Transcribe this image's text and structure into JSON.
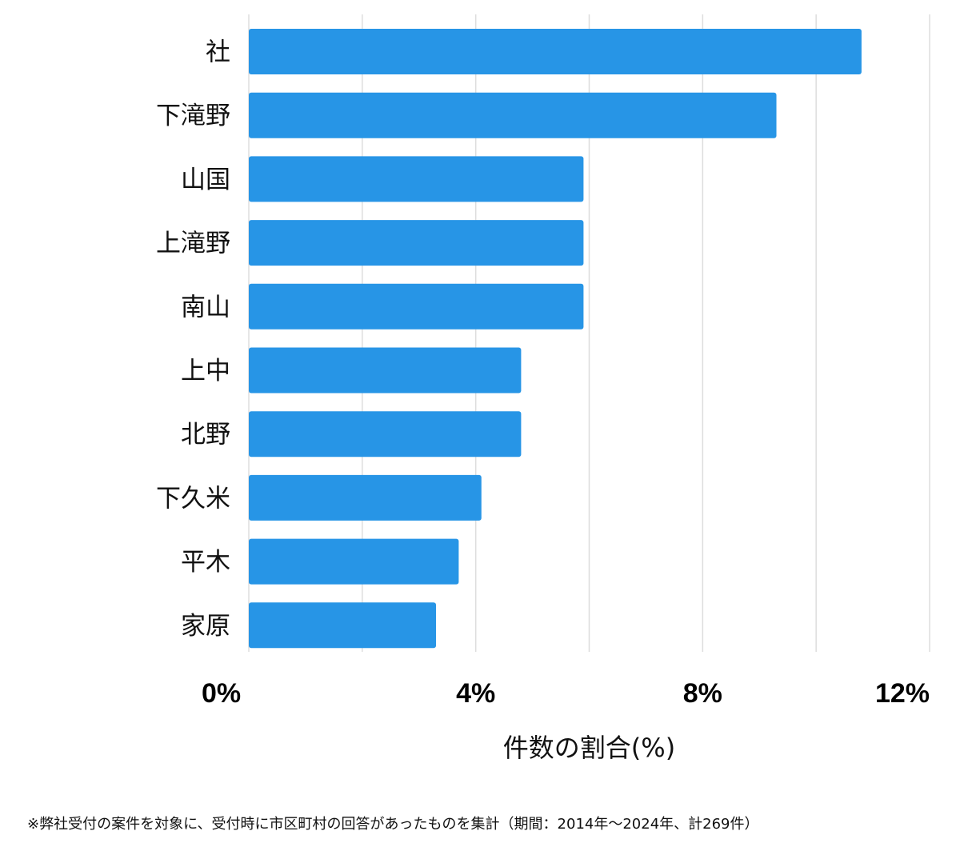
{
  "chart_data": {
    "type": "bar",
    "orientation": "horizontal",
    "categories": [
      "社",
      "下滝野",
      "山国",
      "上滝野",
      "南山",
      "上中",
      "北野",
      "下久米",
      "平木",
      "家原"
    ],
    "values": [
      10.8,
      9.3,
      5.9,
      5.9,
      5.9,
      4.8,
      4.8,
      4.1,
      3.7,
      3.3
    ],
    "xlabel": "件数の割合(%)",
    "ylabel": "",
    "xlim": [
      0,
      12
    ],
    "xticks": [
      0,
      4,
      8,
      12
    ],
    "xtick_labels": [
      "0%",
      "4%",
      "8%",
      "12%"
    ],
    "grid": true,
    "bar_color": "#2795e6",
    "grid_color": "#dddddd"
  },
  "footnote": "※弊社受付の案件を対象に、受付時に市区町村の回答があったものを集計（期間：2014年～2024年、計269件）"
}
